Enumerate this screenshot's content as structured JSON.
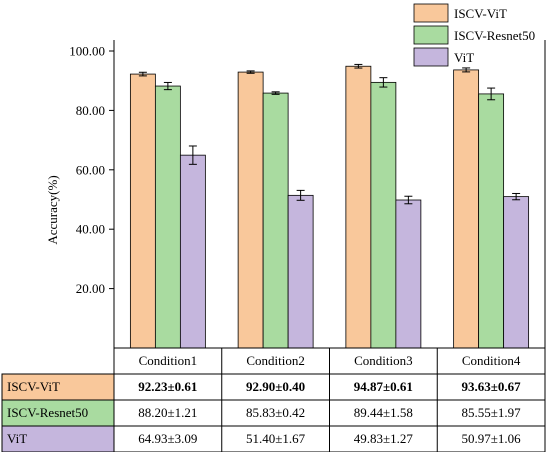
{
  "chart_data": {
    "type": "bar",
    "ylabel": "Accuracy(%)",
    "ylim": [
      0,
      100
    ],
    "yticks": [
      "20.00",
      "40.00",
      "60.00",
      "80.00",
      "100.00"
    ],
    "categories": [
      "Condition1",
      "Condition2",
      "Condition3",
      "Condition4"
    ],
    "series": [
      {
        "name": "ISCV-ViT",
        "color": "#f9c89b",
        "values": [
          92.23,
          92.9,
          94.87,
          93.63
        ],
        "errors": [
          0.61,
          0.4,
          0.61,
          0.67
        ],
        "cells": [
          "92.23±0.61",
          "92.90±0.40",
          "94.87±0.61",
          "93.63±0.67"
        ],
        "bold": true
      },
      {
        "name": "ISCV-Resnet50",
        "color": "#a9dba0",
        "values": [
          88.2,
          85.83,
          89.44,
          85.55
        ],
        "errors": [
          1.21,
          0.42,
          1.58,
          1.97
        ],
        "cells": [
          "88.20±1.21",
          "85.83±0.42",
          "89.44±1.58",
          "85.55±1.97"
        ],
        "bold": false
      },
      {
        "name": "ViT",
        "color": "#c5b6dd",
        "values": [
          64.93,
          51.4,
          49.83,
          50.97
        ],
        "errors": [
          3.09,
          1.67,
          1.27,
          1.06
        ],
        "cells": [
          "64.93±3.09",
          "51.40±1.67",
          "49.83±1.27",
          "50.97±1.06"
        ],
        "bold": false
      }
    ],
    "legend": {
      "position": "top-right"
    },
    "grid": false
  }
}
